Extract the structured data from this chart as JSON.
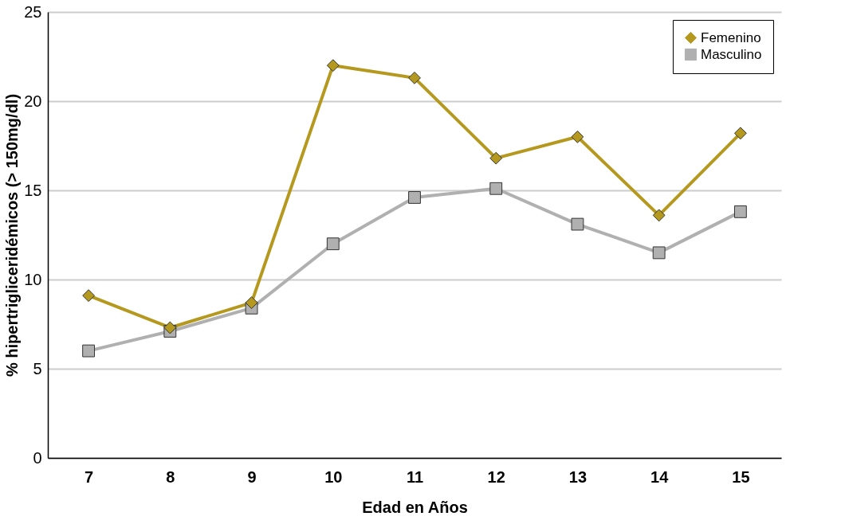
{
  "chart_data": {
    "type": "line",
    "xlabel": "Edad en Años",
    "ylabel": "% hipertrigliceridémicos (> 150mg/dl)",
    "categories": [
      "7",
      "8",
      "9",
      "10",
      "11",
      "12",
      "13",
      "14",
      "15"
    ],
    "series": [
      {
        "name": "Femenino",
        "color": "#b5991f",
        "marker": "diamond",
        "values": [
          9.1,
          7.3,
          8.7,
          22.0,
          21.3,
          16.8,
          18.0,
          13.6,
          18.2
        ]
      },
      {
        "name": "Masculino",
        "color": "#b0b0b0",
        "marker": "square",
        "values": [
          6.0,
          7.1,
          8.4,
          12.0,
          14.6,
          15.1,
          13.1,
          11.5,
          13.8
        ]
      }
    ],
    "ylim": [
      0,
      25
    ],
    "yticks": [
      0,
      5,
      10,
      15,
      20,
      25
    ],
    "grid": "y",
    "legend": "top right",
    "line_style": "solid"
  }
}
